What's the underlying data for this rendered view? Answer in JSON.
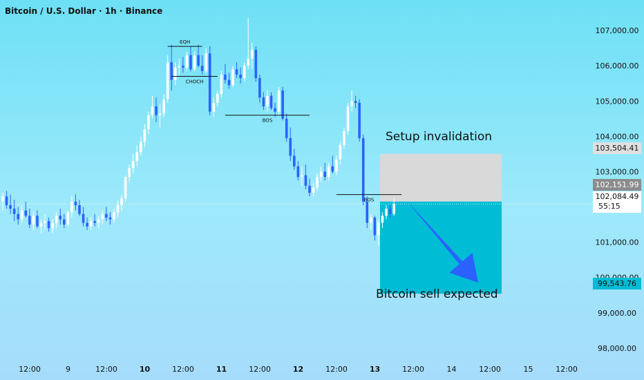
{
  "chart_data": {
    "type": "candlestick",
    "title": "Bitcoin / U.S. Dollar · 1h · Binance",
    "y_ticks": [
      98000,
      99000,
      100000,
      101000,
      102000,
      103000,
      104000,
      105000,
      106000,
      107000
    ],
    "y_tick_labels": [
      "98,000.00",
      "99,000.00",
      "100,000.00",
      "101,000.00",
      "102,000.00",
      "103,000.00",
      "104,000.00",
      "105,000.00",
      "106,000.00",
      "107,000.00"
    ],
    "ylim": [
      97450,
      107550
    ],
    "x_tick_labels": [
      "12:00",
      "9",
      "12:00",
      "10",
      "12:00",
      "11",
      "12:00",
      "12",
      "12:00",
      "13",
      "12:00",
      "14",
      "12:00",
      "15",
      "12:00"
    ],
    "x_ticks_bold": [
      "10",
      "11",
      "12",
      "13"
    ],
    "candles": [
      [
        102150,
        102400,
        101900,
        102300
      ],
      [
        102300,
        102450,
        101950,
        102050
      ],
      [
        102050,
        102350,
        101800,
        101950
      ],
      [
        101950,
        102200,
        101600,
        101800
      ],
      [
        101800,
        102000,
        101500,
        101650
      ],
      [
        101650,
        102050,
        101550,
        101900
      ],
      [
        101900,
        102150,
        101700,
        101750
      ],
      [
        101750,
        101950,
        101400,
        101500
      ],
      [
        101500,
        101850,
        101350,
        101750
      ],
      [
        101750,
        101900,
        101400,
        101450
      ],
      [
        101450,
        101650,
        101250,
        101550
      ],
      [
        101550,
        101800,
        101350,
        101600
      ],
      [
        101600,
        101700,
        101300,
        101400
      ],
      [
        101400,
        101650,
        101250,
        101550
      ],
      [
        101550,
        101850,
        101400,
        101750
      ],
      [
        101750,
        101950,
        101500,
        101650
      ],
      [
        101650,
        101800,
        101400,
        101500
      ],
      [
        101500,
        101900,
        101450,
        101850
      ],
      [
        101850,
        102300,
        101700,
        102150
      ],
      [
        102150,
        102350,
        101900,
        102050
      ],
      [
        102050,
        102200,
        101750,
        101800
      ],
      [
        101800,
        102000,
        101450,
        101550
      ],
      [
        101550,
        101700,
        101350,
        101450
      ],
      [
        101450,
        101700,
        101350,
        101600
      ],
      [
        101600,
        101800,
        101450,
        101550
      ],
      [
        101550,
        101750,
        101400,
        101650
      ],
      [
        101650,
        101900,
        101500,
        101800
      ],
      [
        101800,
        102000,
        101600,
        101700
      ],
      [
        101700,
        101850,
        101500,
        101650
      ],
      [
        101650,
        101950,
        101550,
        101850
      ],
      [
        101850,
        102200,
        101700,
        102050
      ],
      [
        102050,
        102350,
        101900,
        102250
      ],
      [
        102250,
        102900,
        102150,
        102850
      ],
      [
        102850,
        103200,
        102700,
        103100
      ],
      [
        103100,
        103500,
        102950,
        103300
      ],
      [
        103300,
        103750,
        103150,
        103550
      ],
      [
        103550,
        104000,
        103450,
        103850
      ],
      [
        103850,
        104350,
        103700,
        104200
      ],
      [
        104200,
        104700,
        104050,
        104600
      ],
      [
        104600,
        105150,
        104500,
        104850
      ],
      [
        104850,
        105100,
        104400,
        104600
      ],
      [
        104600,
        104900,
        104250,
        104650
      ],
      [
        104650,
        105200,
        104550,
        105050
      ],
      [
        105050,
        106300,
        104950,
        106100
      ],
      [
        106100,
        106600,
        105300,
        105600
      ],
      [
        105600,
        106100,
        105450,
        105950
      ],
      [
        105950,
        106200,
        105750,
        106000
      ],
      [
        106000,
        106250,
        105800,
        105950
      ],
      [
        105950,
        106400,
        105850,
        106300
      ],
      [
        106300,
        106550,
        105850,
        105900
      ],
      [
        105900,
        106400,
        105850,
        106300
      ],
      [
        106300,
        106600,
        105950,
        106000
      ],
      [
        106000,
        106300,
        105750,
        105850
      ],
      [
        105850,
        106500,
        105800,
        106350
      ],
      [
        106350,
        106550,
        104600,
        104700
      ],
      [
        104700,
        105100,
        104550,
        104950
      ],
      [
        104950,
        105300,
        104850,
        105200
      ],
      [
        105200,
        105850,
        105100,
        105750
      ],
      [
        105750,
        106050,
        105500,
        105600
      ],
      [
        105600,
        105800,
        105350,
        105450
      ],
      [
        105450,
        106000,
        105400,
        105900
      ],
      [
        105900,
        106100,
        105650,
        105750
      ],
      [
        105750,
        105950,
        105500,
        105650
      ],
      [
        105650,
        106100,
        105550,
        106000
      ],
      [
        106000,
        107350,
        105900,
        106200
      ],
      [
        106200,
        106650,
        105900,
        106450
      ],
      [
        106450,
        106550,
        105550,
        105650
      ],
      [
        105650,
        105750,
        104950,
        105100
      ],
      [
        105100,
        105250,
        104750,
        104850
      ],
      [
        104850,
        105300,
        104700,
        105150
      ],
      [
        105150,
        105250,
        104750,
        104800
      ],
      [
        104800,
        104950,
        104550,
        104700
      ],
      [
        104700,
        105400,
        104600,
        105300
      ],
      [
        105300,
        105400,
        104450,
        104500
      ],
      [
        104500,
        104650,
        103850,
        103950
      ],
      [
        103950,
        104250,
        103300,
        103450
      ],
      [
        103450,
        103650,
        103050,
        103150
      ],
      [
        103150,
        103300,
        102750,
        102850
      ],
      [
        102850,
        103150,
        102600,
        102900
      ],
      [
        102900,
        103200,
        102500,
        102600
      ],
      [
        102600,
        102800,
        102300,
        102400
      ],
      [
        102400,
        102700,
        102300,
        102550
      ],
      [
        102550,
        102950,
        102450,
        102850
      ],
      [
        102850,
        103150,
        102700,
        103000
      ],
      [
        103000,
        103250,
        102750,
        102850
      ],
      [
        102850,
        103250,
        102750,
        103150
      ],
      [
        103150,
        103450,
        102950,
        103000
      ],
      [
        103000,
        103450,
        102900,
        103350
      ],
      [
        103350,
        103850,
        103200,
        103750
      ],
      [
        103750,
        104250,
        103650,
        104150
      ],
      [
        104150,
        104950,
        104050,
        104850
      ],
      [
        104850,
        105300,
        104700,
        105000
      ],
      [
        105000,
        105150,
        104800,
        104950
      ],
      [
        104950,
        105050,
        103850,
        103950
      ],
      [
        103950,
        104050,
        102050,
        102150
      ],
      [
        102150,
        102300,
        101400,
        101550
      ],
      [
        101550,
        101800,
        101350,
        101700
      ],
      [
        101700,
        101750,
        101050,
        101200
      ],
      [
        101200,
        101650,
        100900,
        101550
      ],
      [
        101550,
        101850,
        101400,
        101750
      ],
      [
        101750,
        102050,
        101650,
        101950
      ],
      [
        101950,
        102050,
        101700,
        101800
      ],
      [
        101800,
        102250,
        101750,
        102085
      ]
    ],
    "annotations": [
      {
        "text": "EQH",
        "price": 106550,
        "from_candle": 43,
        "to_candle": 52
      },
      {
        "text": "CHOCH",
        "price": 105700,
        "from_candle": 44,
        "to_candle": 56
      },
      {
        "text": "BOS",
        "price": 104600,
        "from_candle": 58,
        "to_candle": 80
      },
      {
        "text": "BOS",
        "price": 102350,
        "from_candle": 87,
        "to_candle": 104
      }
    ],
    "zones": {
      "stop": {
        "from": 102151.99,
        "to": 103504.41,
        "color": "#d9d9d9"
      },
      "target": {
        "from": 99543.76,
        "to": 102151.99,
        "color": "#00bcd4"
      }
    },
    "zone_labels": {
      "stop": "Setup invalidation",
      "target": "Bitcoin sell expected"
    },
    "price_labels": {
      "stop": "103,504.41",
      "entry": "102,151.99",
      "current": "102,084.49",
      "countdown": "55:15",
      "target": "99,543.76"
    },
    "colors": {
      "up": "#ffffff",
      "down": "#2962ff",
      "arrow": "#2962ff"
    }
  }
}
